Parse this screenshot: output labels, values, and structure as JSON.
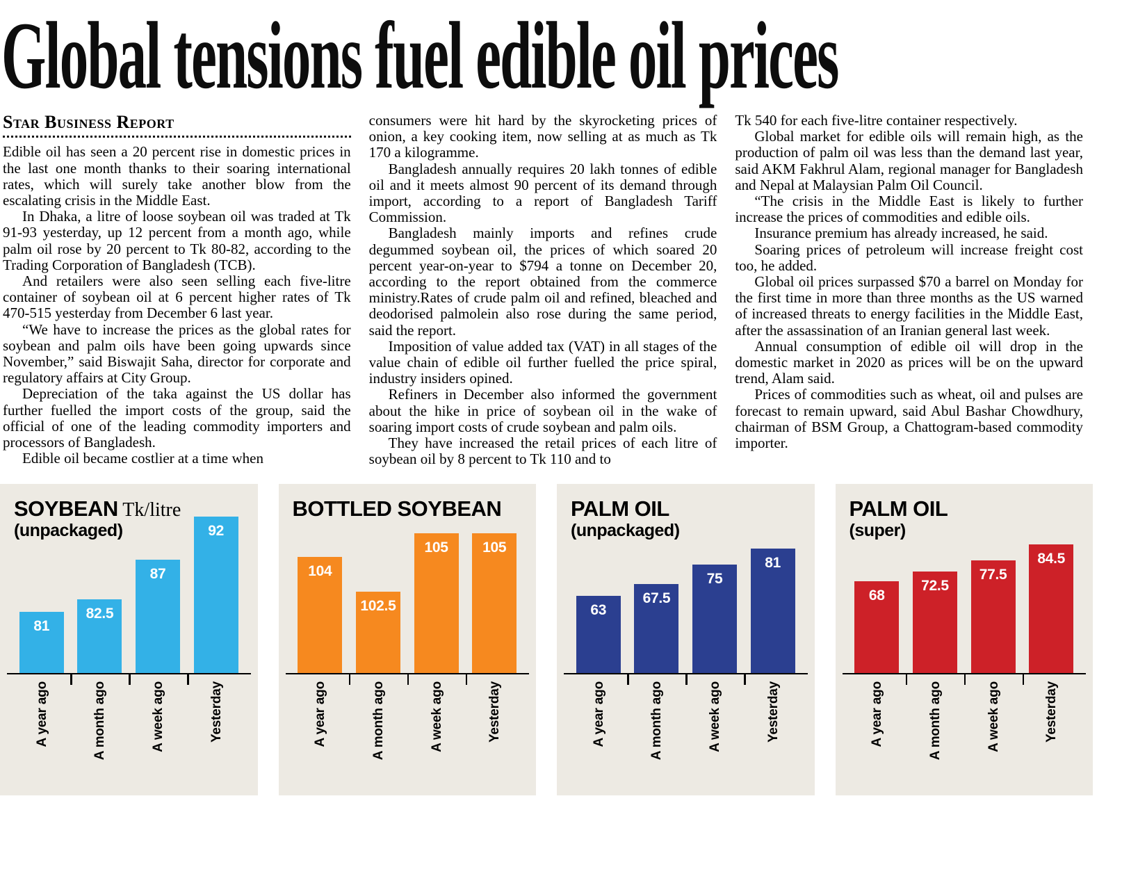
{
  "article": {
    "headline": "Global tensions fuel edible oil prices",
    "byline": "Star Business Report",
    "columns": [
      {
        "paragraphs": [
          "Edible oil has seen a 20 percent rise in domestic prices in the last one month thanks to their soaring international rates, which will surely take another blow from the escalating crisis in the Middle East.",
          "In Dhaka, a litre of loose soybean oil was traded at Tk 91-93 yesterday, up 12 percent from a month ago, while palm oil rose by 20 percent to Tk 80-82, according to the Trading Corporation of Bangladesh (TCB).",
          "And retailers were also seen selling each five-litre container of soybean oil at 6 percent higher rates of Tk 470-515 yesterday from December 6 last year.",
          "“We have to increase the prices as the global rates for soybean and palm oils have been going upwards since November,” said Biswajit Saha, director for corporate and regulatory affairs at City Group.",
          "Depreciation of the taka against the US dollar has further fuelled the import costs of the group, said the official of one of the leading commodity importers and processors of Bangladesh.",
          "Edible oil became costlier at a time when"
        ]
      },
      {
        "paragraphs": [
          "consumers were hit hard by the skyrocketing prices of onion, a key cooking item, now selling at as much as Tk 170 a kilogramme.",
          "Bangladesh annually requires 20 lakh tonnes of edible oil and it meets almost 90 percent of its demand through import, according to a report of Bangladesh Tariff Commission.",
          "Bangladesh mainly imports and refines crude degummed soybean oil, the prices of which soared 20 percent year-on-year to $794 a tonne on December 20, according to the report obtained from the commerce ministry.Rates of crude palm oil and refined, bleached and deodorised palmolein also rose during the same period, said the report.",
          "Imposition of value added tax (VAT) in all stages of the value chain of edible oil further fuelled the price spiral, industry insiders opined.",
          "Refiners in December also informed the government about the hike in price of soybean oil in the wake of soaring import costs of crude soybean and palm oils.",
          "They have increased the retail prices of each litre of soybean oil by 8 percent to Tk 110 and to"
        ]
      },
      {
        "paragraphs": [
          "Tk 540 for each five-litre container respectively.",
          "Global market for edible oils will remain high, as the production of palm oil was less than the demand last year, said AKM Fakhrul Alam, regional manager for Bangladesh and Nepal at Malaysian Palm Oil Council.",
          "“The crisis in the Middle East is likely to further increase the prices of commodities and edible oils.",
          "Insurance premium has already increased, he said.",
          "Soaring prices of petroleum will increase freight cost too, he added.",
          "Global oil prices surpassed $70 a barrel on Monday for the first time in more than three months as the US warned of increased threats to energy facilities in the Middle East, after the assassination of an Iranian general last week.",
          "Annual consumption of edible oil will drop in the domestic market in 2020 as prices will be on the upward trend, Alam said.",
          "Prices of commodities such as wheat, oil and pulses are forecast to remain upward, said Abul Bashar Chowdhury, chairman of BSM Group, a Chattogram-based commodity importer."
        ]
      }
    ]
  },
  "colors": {
    "page_bg": "#ffffff",
    "panel_bg": "#edeae3",
    "headline_text": "#0d0d0d",
    "body_text": "#000000"
  },
  "chart_data": [
    {
      "type": "bar",
      "title": "SOYBEAN",
      "unit_label": "Tk/litre",
      "subtitle": "(unpackaged)",
      "categories": [
        "A year ago",
        "A month ago",
        "A week ago",
        "Yesterday"
      ],
      "values": [
        81,
        82.5,
        87,
        92
      ],
      "bar_color": "#33b1e7",
      "ylim": [
        74,
        93.5
      ],
      "grid": false,
      "legend": "none"
    },
    {
      "type": "bar",
      "title": "BOTTLED SOYBEAN",
      "unit_label": "",
      "subtitle": "",
      "categories": [
        "A year ago",
        "A month ago",
        "A week ago",
        "Yesterday"
      ],
      "values": [
        104,
        102.5,
        105,
        105
      ],
      "bar_color": "#f6891f",
      "ylim": [
        99,
        106.3
      ],
      "grid": false,
      "legend": "none"
    },
    {
      "type": "bar",
      "title": "PALM OIL",
      "unit_label": "",
      "subtitle": "(unpackaged)",
      "categories": [
        "A year ago",
        "A month ago",
        "A week ago",
        "Yesterday"
      ],
      "values": [
        63,
        67.5,
        75,
        81
      ],
      "bar_color": "#2b3f90",
      "ylim": [
        34,
        98
      ],
      "grid": false,
      "legend": "none"
    },
    {
      "type": "bar",
      "title": "PALM OIL",
      "unit_label": "",
      "subtitle": "(super)",
      "categories": [
        "A year ago",
        "A month ago",
        "A week ago",
        "Yesterday"
      ],
      "values": [
        68,
        72.5,
        77.5,
        84.5
      ],
      "bar_color": "#cd2128",
      "ylim": [
        27,
        103
      ],
      "grid": false,
      "legend": "none"
    }
  ]
}
